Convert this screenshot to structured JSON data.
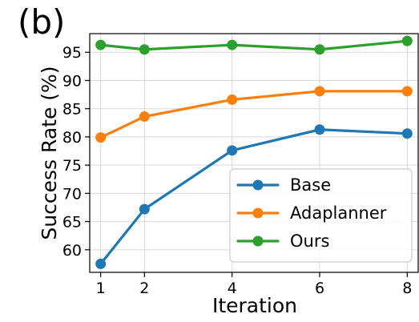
{
  "panel_label": "(b)",
  "chart_data": {
    "type": "line",
    "xlabel": "Iteration",
    "ylabel": "Success Rate (%)",
    "x": [
      1,
      2,
      4,
      6,
      8
    ],
    "x_ticks": [
      "1",
      "2",
      "4",
      "6",
      "8"
    ],
    "y_ticks": [
      "60",
      "65",
      "70",
      "75",
      "80",
      "85",
      "90",
      "95"
    ],
    "xlim": [
      0.75,
      8.25
    ],
    "ylim": [
      56.0,
      98.3
    ],
    "grid": true,
    "legend_position": "bottom-right",
    "series": [
      {
        "name": "Base",
        "color": "#1f77b4",
        "values": [
          57.5,
          67.2,
          77.6,
          81.3,
          80.6
        ]
      },
      {
        "name": "Adaplanner",
        "color": "#ff7f0e",
        "values": [
          79.9,
          83.6,
          86.6,
          88.1,
          88.1
        ]
      },
      {
        "name": "Ours",
        "color": "#2ca02c",
        "values": [
          96.3,
          95.5,
          96.3,
          95.5,
          97.0
        ]
      }
    ]
  }
}
